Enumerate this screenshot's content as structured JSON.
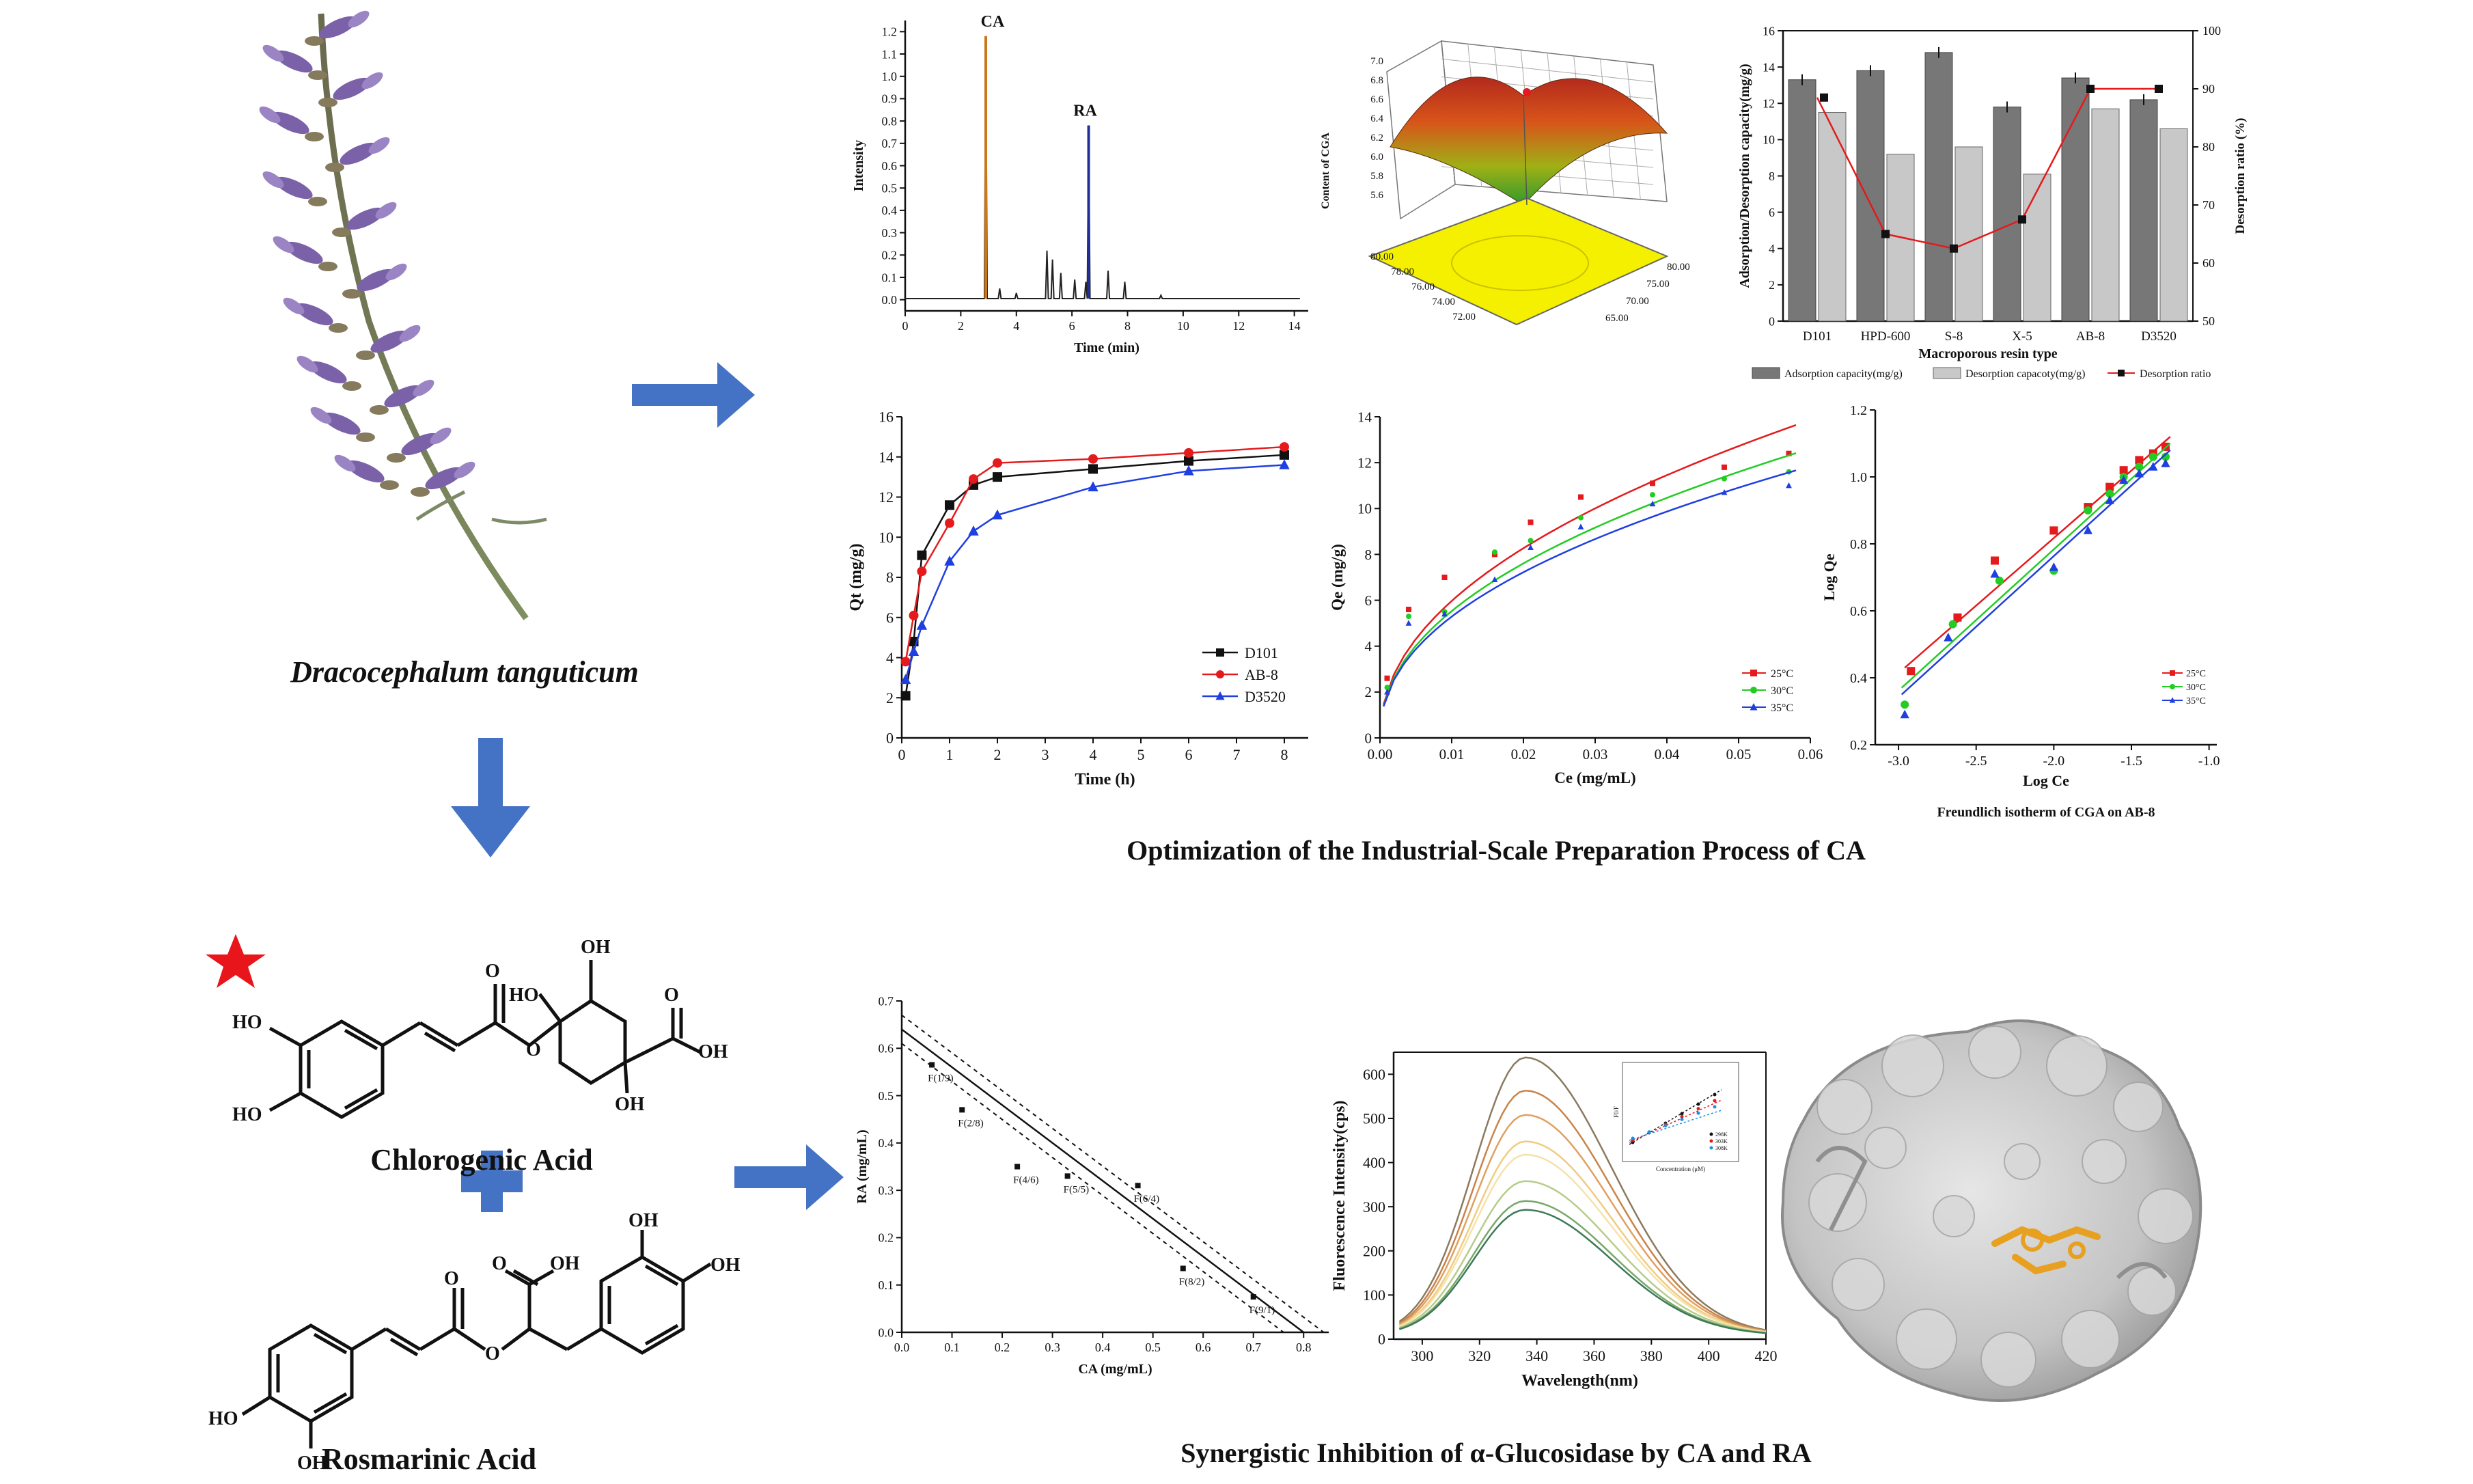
{
  "species": "Dracocephalum tanguticum",
  "compound1": "Chlorogenic Acid",
  "compound2": "Rosmarinic Acid",
  "section1_title": "Optimization of the Industrial-Scale Preparation Process of CA",
  "section2_title": "Synergistic Inhibition of α-Glucosidase by CA and RA",
  "colors": {
    "arrow": "#4472c4",
    "star": "#e8161b",
    "red": "#e41a1c",
    "green": "#22cc22",
    "blue": "#1f3fe0",
    "black": "#111111"
  },
  "chart_data": [
    {
      "id": "hplc",
      "type": "line",
      "xlabel": "Time (min)",
      "ylabel": "Intensity",
      "xlim": [
        0,
        14.5
      ],
      "ylim": [
        -0.05,
        1.25
      ],
      "xticks": [
        "0",
        "2",
        "4",
        "6",
        "8",
        "10",
        "12",
        "14"
      ],
      "yticks": [
        "0.0",
        "0.1",
        "0.2",
        "0.3",
        "0.4",
        "0.5",
        "0.6",
        "0.7",
        "0.8",
        "0.9",
        "1.0",
        "1.1",
        "1.2"
      ],
      "peaks": [
        {
          "label": "CA",
          "x": 2.9,
          "height": 1.18
        },
        {
          "label": "RA",
          "x": 6.6,
          "height": 0.78
        }
      ],
      "minor_peaks": [
        [
          3.4,
          0.05
        ],
        [
          4.0,
          0.03
        ],
        [
          5.1,
          0.22
        ],
        [
          5.3,
          0.18
        ],
        [
          5.6,
          0.12
        ],
        [
          6.1,
          0.09
        ],
        [
          6.5,
          0.08
        ],
        [
          7.3,
          0.13
        ],
        [
          7.9,
          0.08
        ],
        [
          9.2,
          0.02
        ]
      ]
    },
    {
      "id": "rsm",
      "type": "surface",
      "zlabel": "Content of CGA",
      "zticks": [
        "5.6",
        "5.8",
        "6.0",
        "6.2",
        "6.4",
        "6.6",
        "6.8",
        "7.0"
      ],
      "xticks_left": [
        "80.00",
        "78.00",
        "76.00",
        "74.00",
        "72.00"
      ],
      "xticks_right": [
        "80.00",
        "75.00",
        "70.00",
        "65.00"
      ]
    },
    {
      "id": "resin",
      "type": "bar",
      "xlabel": "Macroporous resin type",
      "ylabel": "Adsorption/Desorption capacity(mg/g)",
      "y2label": "Desorption ratio (%)",
      "ylim": [
        0,
        16
      ],
      "y2lim": [
        50,
        100
      ],
      "yticks": [
        "0",
        "2",
        "4",
        "6",
        "8",
        "10",
        "12",
        "14",
        "16"
      ],
      "y2ticks": [
        "50",
        "60",
        "70",
        "80",
        "90",
        "100"
      ],
      "categories": [
        "D101",
        "HPD-600",
        "S-8",
        "X-5",
        "AB-8",
        "D3520"
      ],
      "series": [
        {
          "name": "Adsorption capacity(mg/g)",
          "values": [
            13.3,
            13.8,
            14.8,
            11.8,
            13.4,
            12.2
          ]
        },
        {
          "name": "Desorption capacoty(mg/g)",
          "values": [
            11.5,
            9.2,
            9.6,
            8.1,
            11.7,
            10.6
          ]
        },
        {
          "name": "Desorption ratio",
          "values": [
            88.5,
            65.0,
            62.5,
            67.5,
            90.0,
            90.0
          ]
        }
      ]
    },
    {
      "id": "kinetics",
      "type": "line",
      "xlabel": "Time (h)",
      "ylabel": "Qt (mg/g)",
      "xlim": [
        0,
        8.5
      ],
      "ylim": [
        0,
        16
      ],
      "xticks": [
        "0",
        "1",
        "2",
        "3",
        "4",
        "5",
        "6",
        "7",
        "8"
      ],
      "yticks": [
        "0",
        "2",
        "4",
        "6",
        "8",
        "10",
        "12",
        "14",
        "16"
      ],
      "x": [
        0.08,
        0.25,
        0.42,
        1.0,
        1.5,
        2,
        4,
        6,
        8
      ],
      "series": [
        {
          "name": "D101",
          "values": [
            2.1,
            4.8,
            9.1,
            11.6,
            12.6,
            13.0,
            13.4,
            13.8,
            14.1
          ]
        },
        {
          "name": "AB-8",
          "values": [
            3.8,
            6.1,
            8.3,
            10.7,
            12.9,
            13.7,
            13.9,
            14.2,
            14.5
          ]
        },
        {
          "name": "D3520",
          "values": [
            2.9,
            4.3,
            5.6,
            8.8,
            10.3,
            11.1,
            12.5,
            13.3,
            13.6
          ]
        }
      ]
    },
    {
      "id": "isotherm",
      "type": "scatter",
      "xlabel": "Ce (mg/mL)",
      "ylabel": "Qe (mg/g)",
      "xlim": [
        0,
        0.06
      ],
      "ylim": [
        0,
        14
      ],
      "xticks": [
        "0.00",
        "0.01",
        "0.02",
        "0.03",
        "0.04",
        "0.05",
        "0.06"
      ],
      "yticks": [
        "0",
        "2",
        "4",
        "6",
        "8",
        "10",
        "12",
        "14"
      ],
      "series": [
        {
          "name": "25°C",
          "x": [
            0.001,
            0.004,
            0.009,
            0.016,
            0.021,
            0.028,
            0.038,
            0.048,
            0.057
          ],
          "values": [
            2.6,
            5.6,
            7.0,
            8.0,
            9.4,
            10.5,
            11.1,
            11.8,
            12.4
          ]
        },
        {
          "name": "30°C",
          "x": [
            0.001,
            0.004,
            0.009,
            0.016,
            0.021,
            0.028,
            0.038,
            0.048,
            0.057
          ],
          "values": [
            2.2,
            5.3,
            5.5,
            8.1,
            8.6,
            9.6,
            10.6,
            11.3,
            11.6
          ]
        },
        {
          "name": "35°C",
          "x": [
            0.001,
            0.004,
            0.009,
            0.016,
            0.021,
            0.028,
            0.038,
            0.048,
            0.057
          ],
          "values": [
            2.0,
            5.0,
            5.4,
            6.9,
            8.3,
            9.2,
            10.2,
            10.7,
            11.0
          ]
        }
      ]
    },
    {
      "id": "freundlich",
      "type": "scatter",
      "title": "Freundlich isotherm of CGA on AB-8",
      "xlabel": "Log Ce",
      "ylabel": "Log Qe",
      "xlim": [
        -3.0,
        -1.0
      ],
      "ylim": [
        0.2,
        1.2
      ],
      "xticks": [
        "-3.0",
        "-2.5",
        "-2.0",
        "-1.5",
        "-1.0"
      ],
      "yticks": [
        "0.2",
        "0.4",
        "0.6",
        "0.8",
        "1.0",
        "1.2"
      ],
      "series": [
        {
          "name": "25°C",
          "x": [
            -2.92,
            -2.62,
            -2.38,
            -2.0,
            -1.78,
            -1.64,
            -1.55,
            -1.45,
            -1.36,
            -1.28
          ],
          "values": [
            0.42,
            0.58,
            0.75,
            0.84,
            0.91,
            0.97,
            1.02,
            1.05,
            1.07,
            1.09
          ]
        },
        {
          "name": "30°C",
          "x": [
            -2.96,
            -2.65,
            -2.35,
            -2.0,
            -1.78,
            -1.64,
            -1.55,
            -1.45,
            -1.36,
            -1.28
          ],
          "values": [
            0.32,
            0.56,
            0.69,
            0.72,
            0.9,
            0.95,
            1.0,
            1.03,
            1.06,
            1.06
          ]
        },
        {
          "name": "35°C",
          "x": [
            -2.96,
            -2.68,
            -2.38,
            -2.0,
            -1.78,
            -1.64,
            -1.55,
            -1.45,
            -1.36,
            -1.28
          ],
          "values": [
            0.29,
            0.52,
            0.71,
            0.73,
            0.84,
            0.93,
            0.99,
            1.01,
            1.03,
            1.04
          ]
        }
      ]
    },
    {
      "id": "isobologram",
      "type": "scatter",
      "xlabel": "CA  (mg/mL)",
      "ylabel": "RA (mg/mL)",
      "xlim": [
        0,
        0.85
      ],
      "ylim": [
        0,
        0.7
      ],
      "xticks": [
        "0.0",
        "0.1",
        "0.2",
        "0.3",
        "0.4",
        "0.5",
        "0.6",
        "0.7",
        "0.8"
      ],
      "yticks": [
        "0.0",
        "0.1",
        "0.2",
        "0.3",
        "0.4",
        "0.5",
        "0.6",
        "0.7"
      ],
      "line": {
        "x": [
          0,
          0.8
        ],
        "values": [
          0.64,
          0
        ]
      },
      "points": [
        {
          "label": "F(1/9)",
          "x": 0.06,
          "value": 0.565
        },
        {
          "label": "F(2/8)",
          "x": 0.12,
          "value": 0.47
        },
        {
          "label": "F(4/6)",
          "x": 0.23,
          "value": 0.35
        },
        {
          "label": "F(5/5)",
          "x": 0.33,
          "value": 0.33
        },
        {
          "label": "F(6/4)",
          "x": 0.47,
          "value": 0.31
        },
        {
          "label": "F(8/2)",
          "x": 0.56,
          "value": 0.135
        },
        {
          "label": "F(9/1)",
          "x": 0.7,
          "value": 0.075
        }
      ]
    },
    {
      "id": "fluorescence",
      "type": "line",
      "xlabel": "Wavelength(nm)",
      "ylabel": "Fluorescence Intensity(cps)",
      "xlim": [
        290,
        420
      ],
      "ylim": [
        0,
        650
      ],
      "xticks": [
        "300",
        "320",
        "340",
        "360",
        "380",
        "400",
        "420"
      ],
      "yticks": [
        "0",
        "100",
        "200",
        "300",
        "400",
        "500",
        "600"
      ],
      "peak_wavelength": 336,
      "series_peaks": [
        630,
        555,
        500,
        440,
        410,
        350,
        305,
        285
      ]
    },
    {
      "id": "stern_volmer_inset",
      "type": "scatter",
      "xlabel": "Concentration (μM)",
      "ylabel": "F0/F",
      "legend": [
        "298K",
        "303K",
        "308K"
      ]
    }
  ]
}
